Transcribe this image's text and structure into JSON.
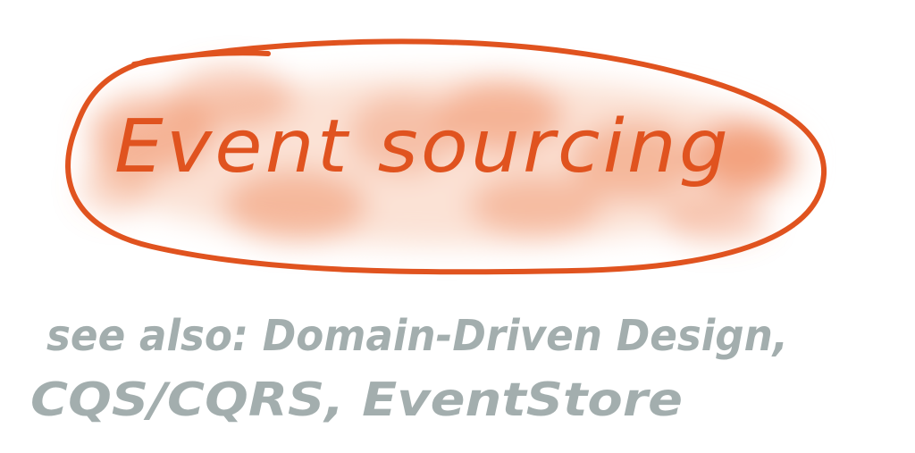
{
  "title": "Event sourcing",
  "see_also": {
    "line1": "see also: Domain-Driven Design,",
    "line2": "CQS/CQRS, EventStore"
  },
  "colors": {
    "accent": "#E0531F",
    "blob": "#F08E62",
    "note": "#A3AEAE",
    "background": "#FFFFFF"
  }
}
